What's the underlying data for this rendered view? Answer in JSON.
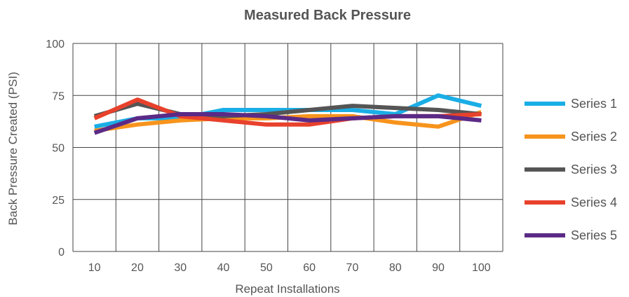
{
  "chart_data": {
    "type": "line",
    "title": "Measured Back Pressure",
    "xlabel": "Repeat Installations",
    "ylabel": "Back Pressure Created (PSI)",
    "x": [
      10,
      20,
      30,
      40,
      50,
      60,
      70,
      80,
      90,
      100
    ],
    "x_tick_labels": [
      "10",
      "20",
      "30",
      "40",
      "50",
      "60",
      "70",
      "80",
      "90",
      "100"
    ],
    "y_tick_labels": [
      "0",
      "25",
      "50",
      "75",
      "100"
    ],
    "y_ticks": [
      0,
      25,
      50,
      75,
      100
    ],
    "ylim": [
      0,
      100
    ],
    "grid": true,
    "legend": "right",
    "series": [
      {
        "name": "Series 1",
        "color": "#1aaee6",
        "values": [
          60,
          64,
          64,
          68,
          68,
          68,
          68,
          66,
          75,
          70
        ]
      },
      {
        "name": "Series 2",
        "color": "#f7941d",
        "values": [
          58,
          61,
          63,
          64,
          64,
          65,
          65,
          62,
          60,
          67
        ]
      },
      {
        "name": "Series 3",
        "color": "#555555",
        "values": [
          65,
          71,
          66,
          65,
          66,
          68,
          70,
          69,
          68,
          66
        ]
      },
      {
        "name": "Series 4",
        "color": "#e8412c",
        "values": [
          64,
          73,
          65,
          63,
          61,
          61,
          64,
          65,
          65,
          66
        ]
      },
      {
        "name": "Series 5",
        "color": "#5b2a86",
        "values": [
          57,
          64,
          66,
          66,
          65,
          63,
          64,
          65,
          65,
          63
        ]
      }
    ]
  }
}
